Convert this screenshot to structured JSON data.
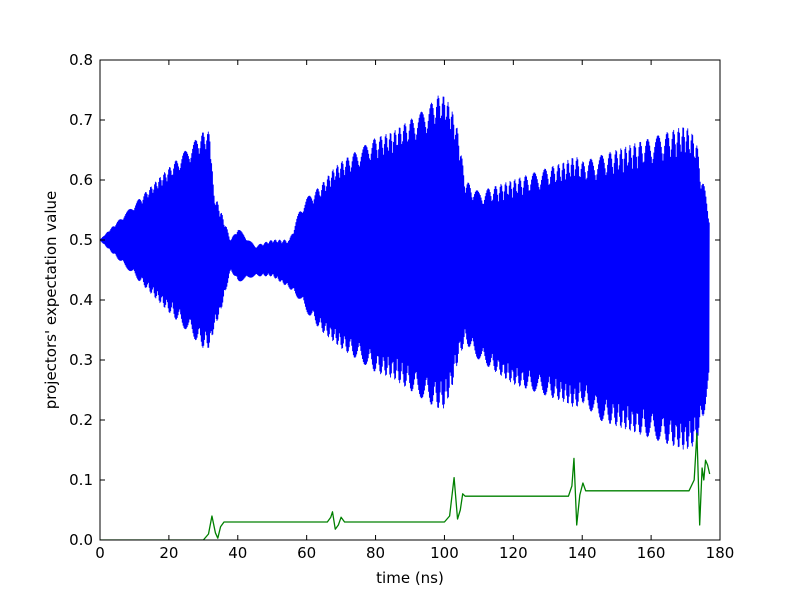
{
  "chart_data": {
    "type": "line",
    "xlabel": "time (ns)",
    "ylabel": "projectors' expectation value",
    "xlim": [
      0,
      180
    ],
    "ylim": [
      0.0,
      0.8
    ],
    "x_ticks": [
      "0",
      "20",
      "40",
      "60",
      "80",
      "100",
      "120",
      "140",
      "160",
      "180"
    ],
    "y_ticks": [
      "0.0",
      "0.1",
      "0.2",
      "0.3",
      "0.4",
      "0.5",
      "0.6",
      "0.7",
      "0.8"
    ],
    "grid": false,
    "legend": "none",
    "series": [
      {
        "color": "#0000ff",
        "style": "fast oscillation about a slowly varying center; envelope gives the max/min values",
        "t_end": 177,
        "center": [
          [
            0,
            0.5
          ],
          [
            32,
            0.5
          ],
          [
            40,
            0.47
          ],
          [
            60,
            0.46
          ],
          [
            80,
            0.455
          ],
          [
            100,
            0.45
          ],
          [
            105,
            0.43
          ],
          [
            140,
            0.41
          ],
          [
            170,
            0.39
          ],
          [
            177,
            0.38
          ]
        ],
        "envelope_max": [
          [
            0,
            0.5
          ],
          [
            5,
            0.53
          ],
          [
            10,
            0.56
          ],
          [
            15,
            0.59
          ],
          [
            20,
            0.62
          ],
          [
            25,
            0.65
          ],
          [
            30,
            0.68
          ],
          [
            32,
            0.68
          ],
          [
            33,
            0.58
          ],
          [
            35,
            0.55
          ],
          [
            38,
            0.5
          ],
          [
            40,
            0.52
          ],
          [
            45,
            0.49
          ],
          [
            50,
            0.5
          ],
          [
            55,
            0.5
          ],
          [
            58,
            0.55
          ],
          [
            60,
            0.57
          ],
          [
            64,
            0.59
          ],
          [
            68,
            0.62
          ],
          [
            70,
            0.63
          ],
          [
            75,
            0.65
          ],
          [
            80,
            0.67
          ],
          [
            85,
            0.68
          ],
          [
            90,
            0.7
          ],
          [
            95,
            0.72
          ],
          [
            98,
            0.74
          ],
          [
            100,
            0.74
          ],
          [
            102,
            0.72
          ],
          [
            104,
            0.68
          ],
          [
            106,
            0.6
          ],
          [
            110,
            0.58
          ],
          [
            115,
            0.59
          ],
          [
            120,
            0.6
          ],
          [
            125,
            0.61
          ],
          [
            130,
            0.62
          ],
          [
            135,
            0.63
          ],
          [
            138,
            0.64
          ],
          [
            140,
            0.63
          ],
          [
            145,
            0.64
          ],
          [
            150,
            0.65
          ],
          [
            155,
            0.66
          ],
          [
            160,
            0.67
          ],
          [
            165,
            0.68
          ],
          [
            170,
            0.69
          ],
          [
            173,
            0.67
          ],
          [
            175,
            0.6
          ],
          [
            177,
            0.55
          ]
        ],
        "envelope_min": [
          [
            0,
            0.5
          ],
          [
            5,
            0.47
          ],
          [
            10,
            0.44
          ],
          [
            15,
            0.41
          ],
          [
            20,
            0.38
          ],
          [
            25,
            0.35
          ],
          [
            30,
            0.32
          ],
          [
            32,
            0.32
          ],
          [
            33,
            0.35
          ],
          [
            35,
            0.38
          ],
          [
            38,
            0.45
          ],
          [
            40,
            0.43
          ],
          [
            45,
            0.44
          ],
          [
            50,
            0.44
          ],
          [
            55,
            0.42
          ],
          [
            58,
            0.4
          ],
          [
            60,
            0.38
          ],
          [
            64,
            0.35
          ],
          [
            68,
            0.33
          ],
          [
            70,
            0.32
          ],
          [
            75,
            0.3
          ],
          [
            80,
            0.28
          ],
          [
            85,
            0.27
          ],
          [
            90,
            0.25
          ],
          [
            95,
            0.23
          ],
          [
            98,
            0.22
          ],
          [
            100,
            0.22
          ],
          [
            102,
            0.25
          ],
          [
            104,
            0.3
          ],
          [
            106,
            0.33
          ],
          [
            110,
            0.3
          ],
          [
            115,
            0.28
          ],
          [
            120,
            0.26
          ],
          [
            125,
            0.25
          ],
          [
            130,
            0.24
          ],
          [
            135,
            0.23
          ],
          [
            138,
            0.22
          ],
          [
            140,
            0.23
          ],
          [
            145,
            0.2
          ],
          [
            150,
            0.19
          ],
          [
            155,
            0.18
          ],
          [
            160,
            0.17
          ],
          [
            165,
            0.16
          ],
          [
            170,
            0.15
          ],
          [
            173,
            0.16
          ],
          [
            175,
            0.2
          ],
          [
            177,
            0.26
          ]
        ]
      },
      {
        "color": "#008000",
        "style": "step-like line with transient spikes",
        "points": [
          [
            0,
            0.0
          ],
          [
            30,
            0.0
          ],
          [
            31.5,
            0.01
          ],
          [
            32.5,
            0.04
          ],
          [
            33.5,
            0.012
          ],
          [
            34.2,
            0.003
          ],
          [
            35,
            0.022
          ],
          [
            36,
            0.03
          ],
          [
            66,
            0.03
          ],
          [
            67,
            0.038
          ],
          [
            67.5,
            0.047
          ],
          [
            68.3,
            0.018
          ],
          [
            69.2,
            0.025
          ],
          [
            70,
            0.038
          ],
          [
            71,
            0.03
          ],
          [
            100,
            0.03
          ],
          [
            101.5,
            0.04
          ],
          [
            102.8,
            0.104
          ],
          [
            103.8,
            0.035
          ],
          [
            104.6,
            0.05
          ],
          [
            105.3,
            0.077
          ],
          [
            106,
            0.073
          ],
          [
            136,
            0.073
          ],
          [
            137,
            0.09
          ],
          [
            137.6,
            0.136
          ],
          [
            138.4,
            0.025
          ],
          [
            139.3,
            0.075
          ],
          [
            140.2,
            0.095
          ],
          [
            141,
            0.082
          ],
          [
            171,
            0.082
          ],
          [
            172.5,
            0.1
          ],
          [
            173.3,
            0.178
          ],
          [
            174.1,
            0.025
          ],
          [
            174.8,
            0.12
          ],
          [
            175.3,
            0.1
          ],
          [
            175.8,
            0.133
          ],
          [
            176.4,
            0.125
          ],
          [
            177,
            0.11
          ]
        ]
      }
    ]
  }
}
